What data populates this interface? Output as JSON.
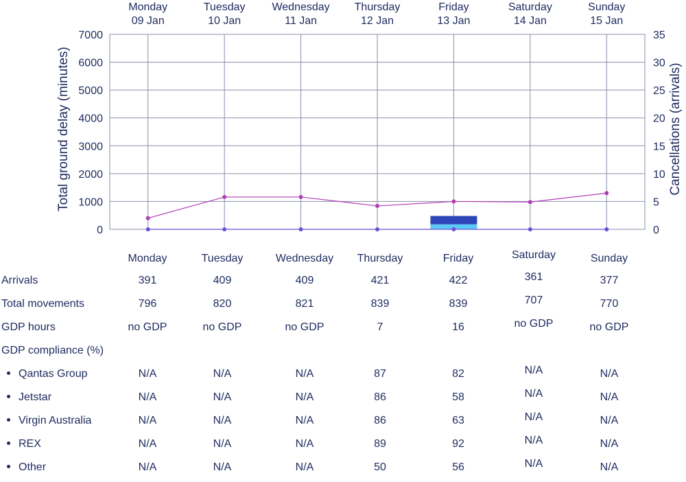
{
  "chart_data": {
    "type": "bar+line",
    "days": [
      {
        "day": "Monday",
        "date": "09 Jan"
      },
      {
        "day": "Tuesday",
        "date": "10 Jan"
      },
      {
        "day": "Wednesday",
        "date": "11 Jan"
      },
      {
        "day": "Thursday",
        "date": "12 Jan"
      },
      {
        "day": "Friday",
        "date": "13 Jan"
      },
      {
        "day": "Saturday",
        "date": "14 Jan"
      },
      {
        "day": "Sunday",
        "date": "15 Jan"
      }
    ],
    "ylabel_left": "Total ground delay (minutes)",
    "ylabel_right": "Cancellations (arrivals)",
    "ylim_left": [
      0,
      7000
    ],
    "ylim_right": [
      0,
      35
    ],
    "yticks_left": [
      0,
      1000,
      2000,
      3000,
      4000,
      5000,
      6000,
      7000
    ],
    "yticks_right": [
      0,
      5,
      10,
      15,
      20,
      25,
      30,
      35
    ],
    "grid": true,
    "bars": [
      {
        "color": "#5bc8f5",
        "values": [
          0,
          0,
          0,
          0,
          180,
          0,
          0
        ]
      },
      {
        "color": "#2e47b8",
        "values": [
          0,
          0,
          0,
          0,
          300,
          0,
          0
        ]
      }
    ],
    "lines": [
      {
        "axis": "right",
        "color": "#b23cb8",
        "values": [
          2,
          5.8,
          5.8,
          4.2,
          5,
          4.9,
          6.5
        ]
      },
      {
        "axis": "right",
        "color": "#6a4fd8",
        "values": [
          0,
          0,
          0,
          0,
          0,
          0,
          0
        ]
      }
    ]
  },
  "table": {
    "headers": [
      "Monday",
      "Tuesday",
      "Wednesday",
      "Thursday",
      "Friday",
      "Saturday",
      "Sunday"
    ],
    "rows": [
      {
        "label": "Arrivals",
        "values": [
          "391",
          "409",
          "409",
          "421",
          "422",
          "361",
          "377"
        ]
      },
      {
        "label": "Total movements",
        "values": [
          "796",
          "820",
          "821",
          "839",
          "839",
          "707",
          "770"
        ]
      },
      {
        "label": "GDP hours",
        "values": [
          "no GDP",
          "no GDP",
          "no GDP",
          "7",
          "16",
          "no GDP",
          "no GDP"
        ]
      },
      {
        "label": "GDP compliance (%)",
        "values": []
      },
      {
        "label": "Qantas Group",
        "bullet": true,
        "values": [
          "N/A",
          "N/A",
          "N/A",
          "87",
          "82",
          "N/A",
          "N/A"
        ]
      },
      {
        "label": "Jetstar",
        "bullet": true,
        "values": [
          "N/A",
          "N/A",
          "N/A",
          "86",
          "58",
          "N/A",
          "N/A"
        ]
      },
      {
        "label": "Virgin Australia",
        "bullet": true,
        "values": [
          "N/A",
          "N/A",
          "N/A",
          "86",
          "63",
          "N/A",
          "N/A"
        ]
      },
      {
        "label": "REX",
        "bullet": true,
        "values": [
          "N/A",
          "N/A",
          "N/A",
          "89",
          "92",
          "N/A",
          "N/A"
        ]
      },
      {
        "label": "Other",
        "bullet": true,
        "values": [
          "N/A",
          "N/A",
          "N/A",
          "50",
          "56",
          "N/A",
          "N/A"
        ]
      }
    ]
  }
}
